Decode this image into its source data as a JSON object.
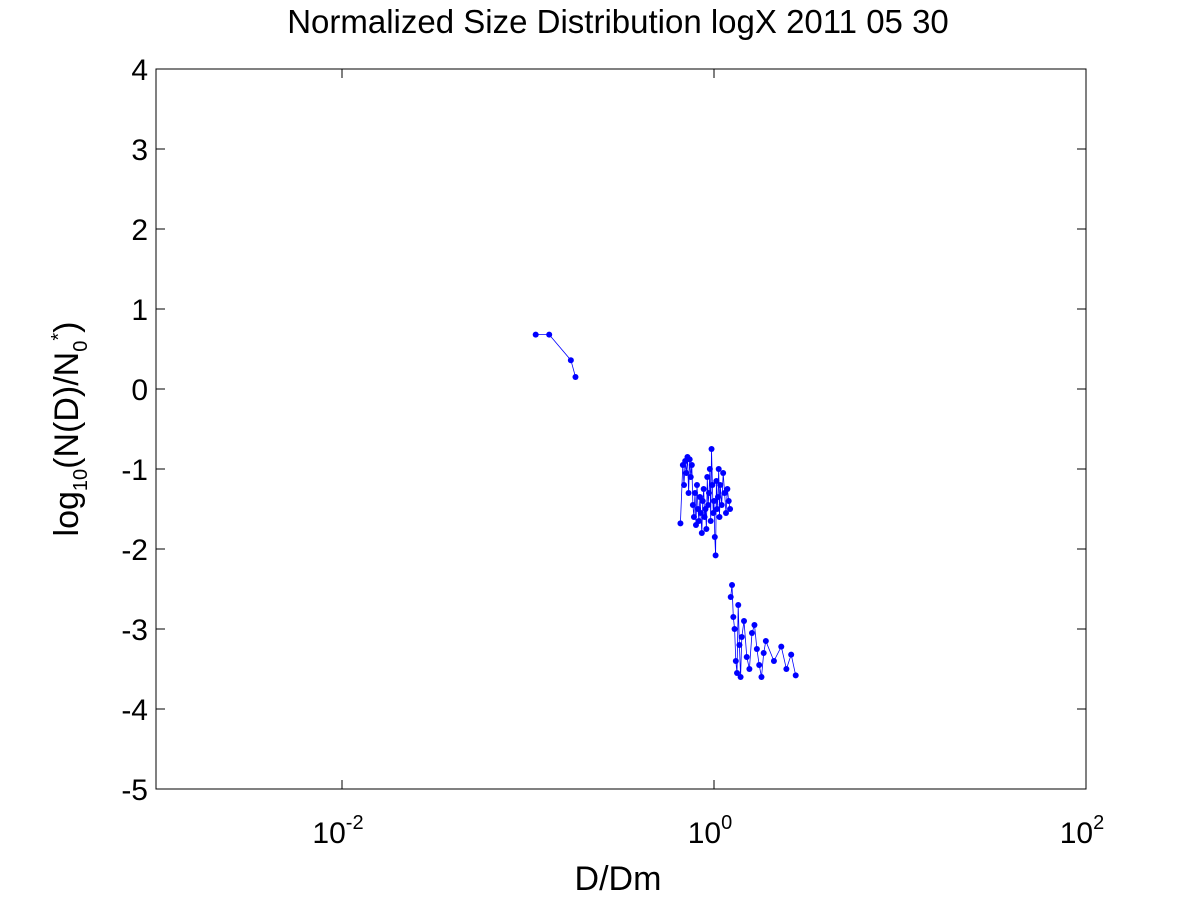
{
  "chart_data": {
    "type": "scatter",
    "title": "Normalized Size Distribution logX 2011 05 30",
    "xlabel": "D/Dm",
    "ylabel": {
      "prefix": "log",
      "sub1": "10",
      "mid": "(N(D)/N",
      "sub2": "0",
      "sup": "*",
      "suffix": ")"
    },
    "xscale": "log",
    "xlim": [
      0.001,
      100
    ],
    "ylim": [
      -5,
      4
    ],
    "xticks": [
      {
        "value": 0.01,
        "base": "10",
        "exp": "-2"
      },
      {
        "value": 1,
        "base": "10",
        "exp": "0"
      },
      {
        "value": 100,
        "base": "10",
        "exp": "2"
      }
    ],
    "yticks": [
      {
        "value": 4,
        "label": "4"
      },
      {
        "value": 3,
        "label": "3"
      },
      {
        "value": 2,
        "label": "2"
      },
      {
        "value": 1,
        "label": "1"
      },
      {
        "value": 0,
        "label": "0"
      },
      {
        "value": -1,
        "label": "-1"
      },
      {
        "value": -2,
        "label": "-2"
      },
      {
        "value": -3,
        "label": "-3"
      },
      {
        "value": -4,
        "label": "-4"
      },
      {
        "value": -5,
        "label": "-5"
      }
    ],
    "grid": false,
    "marker_color": "#0000ff",
    "series": [
      {
        "x": [
          0.11,
          0.13,
          0.17,
          0.18
        ],
        "y": [
          0.68,
          0.68,
          0.36,
          0.15
        ]
      },
      {
        "x": [
          0.66,
          0.68,
          0.69,
          0.7,
          0.71,
          0.72,
          0.73,
          0.74,
          0.75,
          0.76,
          0.77,
          0.78,
          0.79,
          0.8,
          0.81,
          0.82,
          0.83,
          0.84,
          0.85,
          0.86,
          0.87,
          0.88,
          0.89,
          0.9,
          0.91,
          0.92,
          0.93,
          0.94,
          0.95,
          0.96,
          0.97,
          0.98,
          0.99,
          1.0,
          1.01,
          1.02,
          1.03,
          1.04,
          1.05,
          1.06,
          1.07,
          1.08,
          1.1,
          1.12,
          1.14,
          1.16,
          1.18,
          1.2,
          1.22
        ],
        "y": [
          -1.68,
          -0.95,
          -1.2,
          -0.9,
          -1.05,
          -0.85,
          -1.3,
          -0.88,
          -1.1,
          -0.95,
          -1.45,
          -1.6,
          -1.3,
          -1.7,
          -1.2,
          -1.5,
          -1.65,
          -1.35,
          -1.55,
          -1.8,
          -1.4,
          -1.25,
          -1.6,
          -1.5,
          -1.75,
          -1.1,
          -1.45,
          -1.3,
          -1.0,
          -1.65,
          -0.75,
          -1.2,
          -1.55,
          -1.4,
          -1.85,
          -2.08,
          -1.15,
          -1.5,
          -1.35,
          -1.0,
          -1.6,
          -1.2,
          -1.45,
          -1.05,
          -1.3,
          -1.55,
          -1.25,
          -1.4,
          -1.5
        ]
      },
      {
        "x": [
          1.23,
          1.25,
          1.27,
          1.29,
          1.31,
          1.33,
          1.35,
          1.37,
          1.39,
          1.41,
          1.45,
          1.5,
          1.55,
          1.6,
          1.65,
          1.7,
          1.75,
          1.8,
          1.85,
          1.9,
          2.1,
          2.3,
          2.45,
          2.6,
          2.75
        ],
        "y": [
          -2.6,
          -2.45,
          -2.85,
          -3.0,
          -3.4,
          -3.55,
          -2.7,
          -3.2,
          -3.6,
          -3.1,
          -2.9,
          -3.35,
          -3.5,
          -3.05,
          -2.95,
          -3.25,
          -3.45,
          -3.6,
          -3.3,
          -3.15,
          -3.4,
          -3.22,
          -3.5,
          -3.32,
          -3.58
        ]
      }
    ]
  }
}
